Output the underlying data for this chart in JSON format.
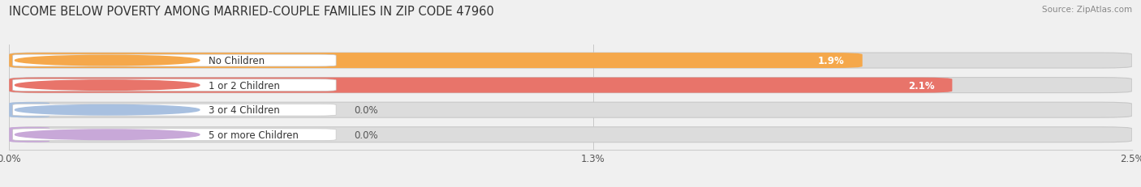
{
  "title": "INCOME BELOW POVERTY AMONG MARRIED-COUPLE FAMILIES IN ZIP CODE 47960",
  "source": "Source: ZipAtlas.com",
  "categories": [
    "No Children",
    "1 or 2 Children",
    "3 or 4 Children",
    "5 or more Children"
  ],
  "values": [
    1.9,
    2.1,
    0.0,
    0.0
  ],
  "bar_colors": [
    "#F5A84B",
    "#E8746A",
    "#A8C0E0",
    "#C8A8D8"
  ],
  "xlim": [
    0,
    2.5
  ],
  "xticks": [
    0.0,
    1.3,
    2.5
  ],
  "xtick_labels": [
    "0.0%",
    "1.3%",
    "2.5%"
  ],
  "background_color": "#f0f0f0",
  "bar_bg_color": "#dcdcdc",
  "title_fontsize": 10.5,
  "label_fontsize": 8.5,
  "value_fontsize": 8.5,
  "bar_height": 0.62
}
